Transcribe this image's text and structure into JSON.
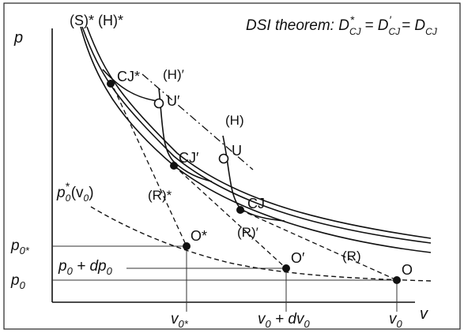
{
  "theorem": {
    "prefix": "DSI theorem: ",
    "d1": "D",
    "d1_sub": "CJ",
    "d1_sup": "*",
    "eq1": " = ",
    "d2": "D",
    "d2_sub": "CJ",
    "d2_sup": "′",
    "eq2": "  = ",
    "d3": "D",
    "d3_sub": "CJ"
  },
  "axes": {
    "y_label": "p",
    "x_label": "v"
  },
  "curve_labels": {
    "s_star_h_star": "(S)* (H)*",
    "h_prime": "(H)′",
    "h": "(H)",
    "r_star": "(R)*",
    "r_prime": "(R)′",
    "r": "(R)"
  },
  "point_labels": {
    "cj_star": "CJ*",
    "cj_prime": "CJ′",
    "cj": "CJ",
    "u_prime": "U′",
    "u": "U",
    "o_star": "O*",
    "o_prime": "O′",
    "o": "O"
  },
  "initial_curve_label": {
    "p": "p",
    "sub": "0",
    "sup": "*",
    "arg": "(v",
    "arg_sub": "0",
    "close": ")"
  },
  "y_ticks": {
    "p0_star": {
      "p": "p",
      "sub": "0*"
    },
    "p0_dp0": {
      "p": "p",
      "sub": "0",
      "rest": " + dp",
      "rest_sub": "0"
    },
    "p0": {
      "p": "p",
      "sub": "0"
    }
  },
  "x_ticks": {
    "v0_star": {
      "v": "v",
      "sub": "0*"
    },
    "v0_dv0": {
      "v": "v",
      "sub": "0",
      "rest": " + dv",
      "rest_sub": "0"
    },
    "v0": {
      "v": "v",
      "sub": "0"
    }
  },
  "colors": {
    "line": "#111111",
    "frame": "#222222",
    "background": "#ffffff"
  }
}
